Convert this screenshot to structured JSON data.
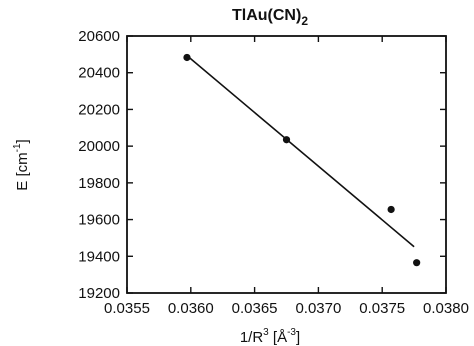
{
  "chart_data": {
    "type": "scatter",
    "title": "TlAu(CN)",
    "title_subscript": "2",
    "xlabel": "1/R",
    "xlabel_superscript": "3",
    "xlabel_unit_prefix": " [Å",
    "xlabel_unit_superscript": "-3",
    "xlabel_unit_suffix": "]",
    "ylabel": "E [cm",
    "ylabel_superscript": "-1",
    "ylabel_suffix": "]",
    "xlim": [
      0.0355,
      0.038
    ],
    "ylim": [
      19200,
      20600
    ],
    "x_ticks": [
      "0.0355",
      "0.0360",
      "0.0365",
      "0.0370",
      "0.0375",
      "0.0380"
    ],
    "y_ticks": [
      "19200",
      "19400",
      "19600",
      "19800",
      "20000",
      "20200",
      "20400",
      "20600"
    ],
    "grid": false,
    "series": [
      {
        "points": [
          {
            "x": 0.03597,
            "y": 20483
          },
          {
            "x": 0.03675,
            "y": 20035
          },
          {
            "x": 0.03757,
            "y": 19655
          },
          {
            "x": 0.03777,
            "y": 19365
          }
        ]
      }
    ],
    "fit_line": {
      "x": [
        0.03597,
        0.03775
      ],
      "y": [
        20493,
        19452
      ]
    }
  }
}
